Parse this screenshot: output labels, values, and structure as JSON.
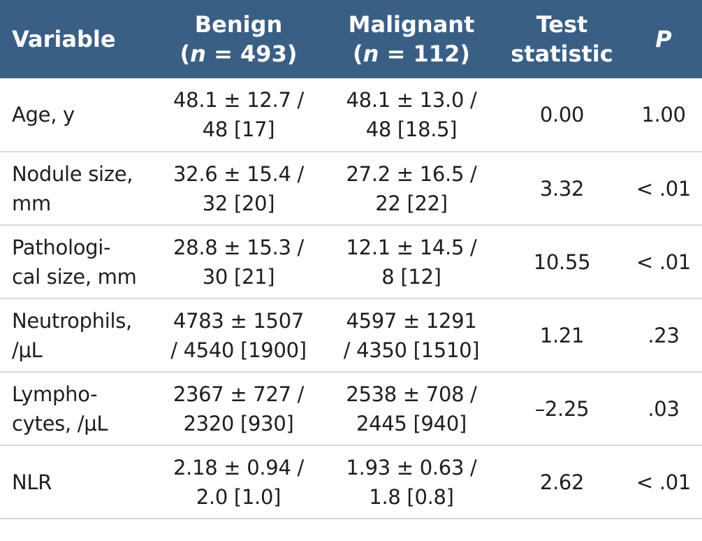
{
  "header": {
    "variable": "Variable",
    "benign_line1": "Benign",
    "benign_n_prefix": "(",
    "benign_n_italic": "n",
    "benign_n_suffix": " = 493)",
    "malignant_line1": "Malignant",
    "malignant_n_prefix": "(",
    "malignant_n_italic": "n",
    "malignant_n_suffix": " = 112)",
    "test_line1": "Test",
    "test_line2": "statistic",
    "p": "P"
  },
  "rows": [
    {
      "variable": [
        "Age, y"
      ],
      "benign": [
        "48.1 ± 12.7 /",
        "48 [17]"
      ],
      "malignant": [
        "48.1 ± 13.0 /",
        "48 [18.5]"
      ],
      "test_statistic": "0.00",
      "p": "1.00"
    },
    {
      "variable": [
        "Nodule size,",
        "mm"
      ],
      "benign": [
        "32.6 ± 15.4 /",
        "32 [20]"
      ],
      "malignant": [
        "27.2 ± 16.5 /",
        "22 [22]"
      ],
      "test_statistic": "3.32",
      "p": "< .01"
    },
    {
      "variable": [
        "Pathologi-",
        "cal size, mm"
      ],
      "benign": [
        "28.8 ± 15.3 /",
        "30 [21]"
      ],
      "malignant": [
        "12.1 ± 14.5 /",
        "8 [12]"
      ],
      "test_statistic": "10.55",
      "p": "< .01"
    },
    {
      "variable": [
        "Neutrophils,",
        "/μL"
      ],
      "benign": [
        "4783 ± 1507",
        "/ 4540 [1900]"
      ],
      "malignant": [
        "4597 ± 1291",
        "/ 4350 [1510]"
      ],
      "test_statistic": "1.21",
      "p": ".23"
    },
    {
      "variable": [
        "Lympho-",
        "cytes, /μL"
      ],
      "benign": [
        "2367 ± 727 /",
        "2320 [930]"
      ],
      "malignant": [
        "2538 ± 708 /",
        "2445 [940]"
      ],
      "test_statistic": "–2.25",
      "p": ".03"
    },
    {
      "variable": [
        "NLR"
      ],
      "benign": [
        "2.18 ± 0.94 /",
        "2.0 [1.0]"
      ],
      "malignant": [
        "1.93 ± 0.63 /",
        "1.8 [0.8]"
      ],
      "test_statistic": "2.62",
      "p": "< .01"
    }
  ]
}
